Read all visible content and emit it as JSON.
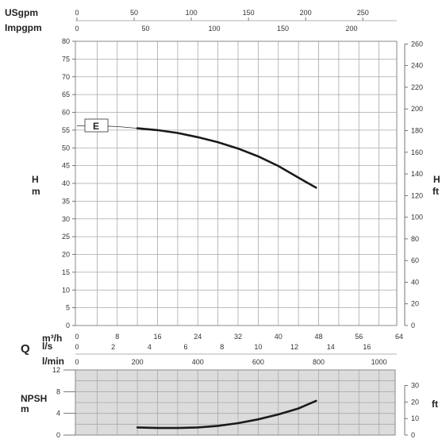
{
  "chart_data": [
    {
      "type": "line",
      "title": "",
      "curve_label": "E",
      "x_axes": {
        "usgpm": {
          "label": "USgpm",
          "ticks": [
            0,
            50,
            100,
            150,
            200,
            250
          ]
        },
        "impgpm": {
          "label": "Impgpm",
          "ticks": [
            0,
            50,
            100,
            150,
            200
          ]
        },
        "m3h": {
          "label": "m³/h",
          "ticks": [
            0,
            8,
            16,
            24,
            32,
            40,
            48,
            56,
            64
          ],
          "range": [
            0,
            64
          ]
        },
        "ls": {
          "label": "l/s",
          "ticks": [
            0,
            2,
            4,
            6,
            8,
            10,
            12,
            14,
            16
          ]
        },
        "lmin": {
          "label": "l/min",
          "ticks": [
            0,
            200,
            400,
            600,
            800,
            1000
          ]
        },
        "q_label": "Q"
      },
      "y_left": {
        "label_top": "H",
        "label_bottom": "m",
        "ticks": [
          0,
          5,
          10,
          15,
          20,
          25,
          30,
          35,
          40,
          45,
          50,
          55,
          60,
          65,
          70,
          75,
          80
        ],
        "range": [
          0,
          80
        ]
      },
      "y_right": {
        "label_top": "H",
        "label_bottom": "ft",
        "ticks": [
          0,
          20,
          40,
          60,
          80,
          100,
          120,
          140,
          160,
          180,
          200,
          220,
          240,
          260
        ]
      },
      "grid": true,
      "series": [
        {
          "x": [
            12,
            16,
            20,
            24,
            28,
            32,
            36,
            40,
            44,
            47.5
          ],
          "y": [
            55.5,
            55.0,
            54.2,
            53.0,
            51.6,
            49.8,
            47.6,
            44.9,
            41.6,
            38.8
          ],
          "x_thin": [
            0,
            4,
            8,
            12
          ],
          "y_thin": [
            56.2,
            56.2,
            56.0,
            55.5
          ]
        }
      ]
    },
    {
      "type": "line",
      "title": "",
      "y_left": {
        "label_top": "NPSH",
        "label_bottom": "m",
        "ticks": [
          0,
          4,
          8,
          12
        ],
        "range": [
          0,
          12
        ]
      },
      "y_right": {
        "label": "ft",
        "ticks": [
          0,
          10,
          20,
          30
        ]
      },
      "x_range": [
        0,
        64
      ],
      "grid": true,
      "series": [
        {
          "x": [
            12,
            16,
            20,
            24,
            28,
            32,
            36,
            40,
            44,
            47.5
          ],
          "y": [
            1.4,
            1.3,
            1.3,
            1.4,
            1.7,
            2.2,
            2.9,
            3.8,
            4.9,
            6.3
          ]
        }
      ]
    }
  ]
}
